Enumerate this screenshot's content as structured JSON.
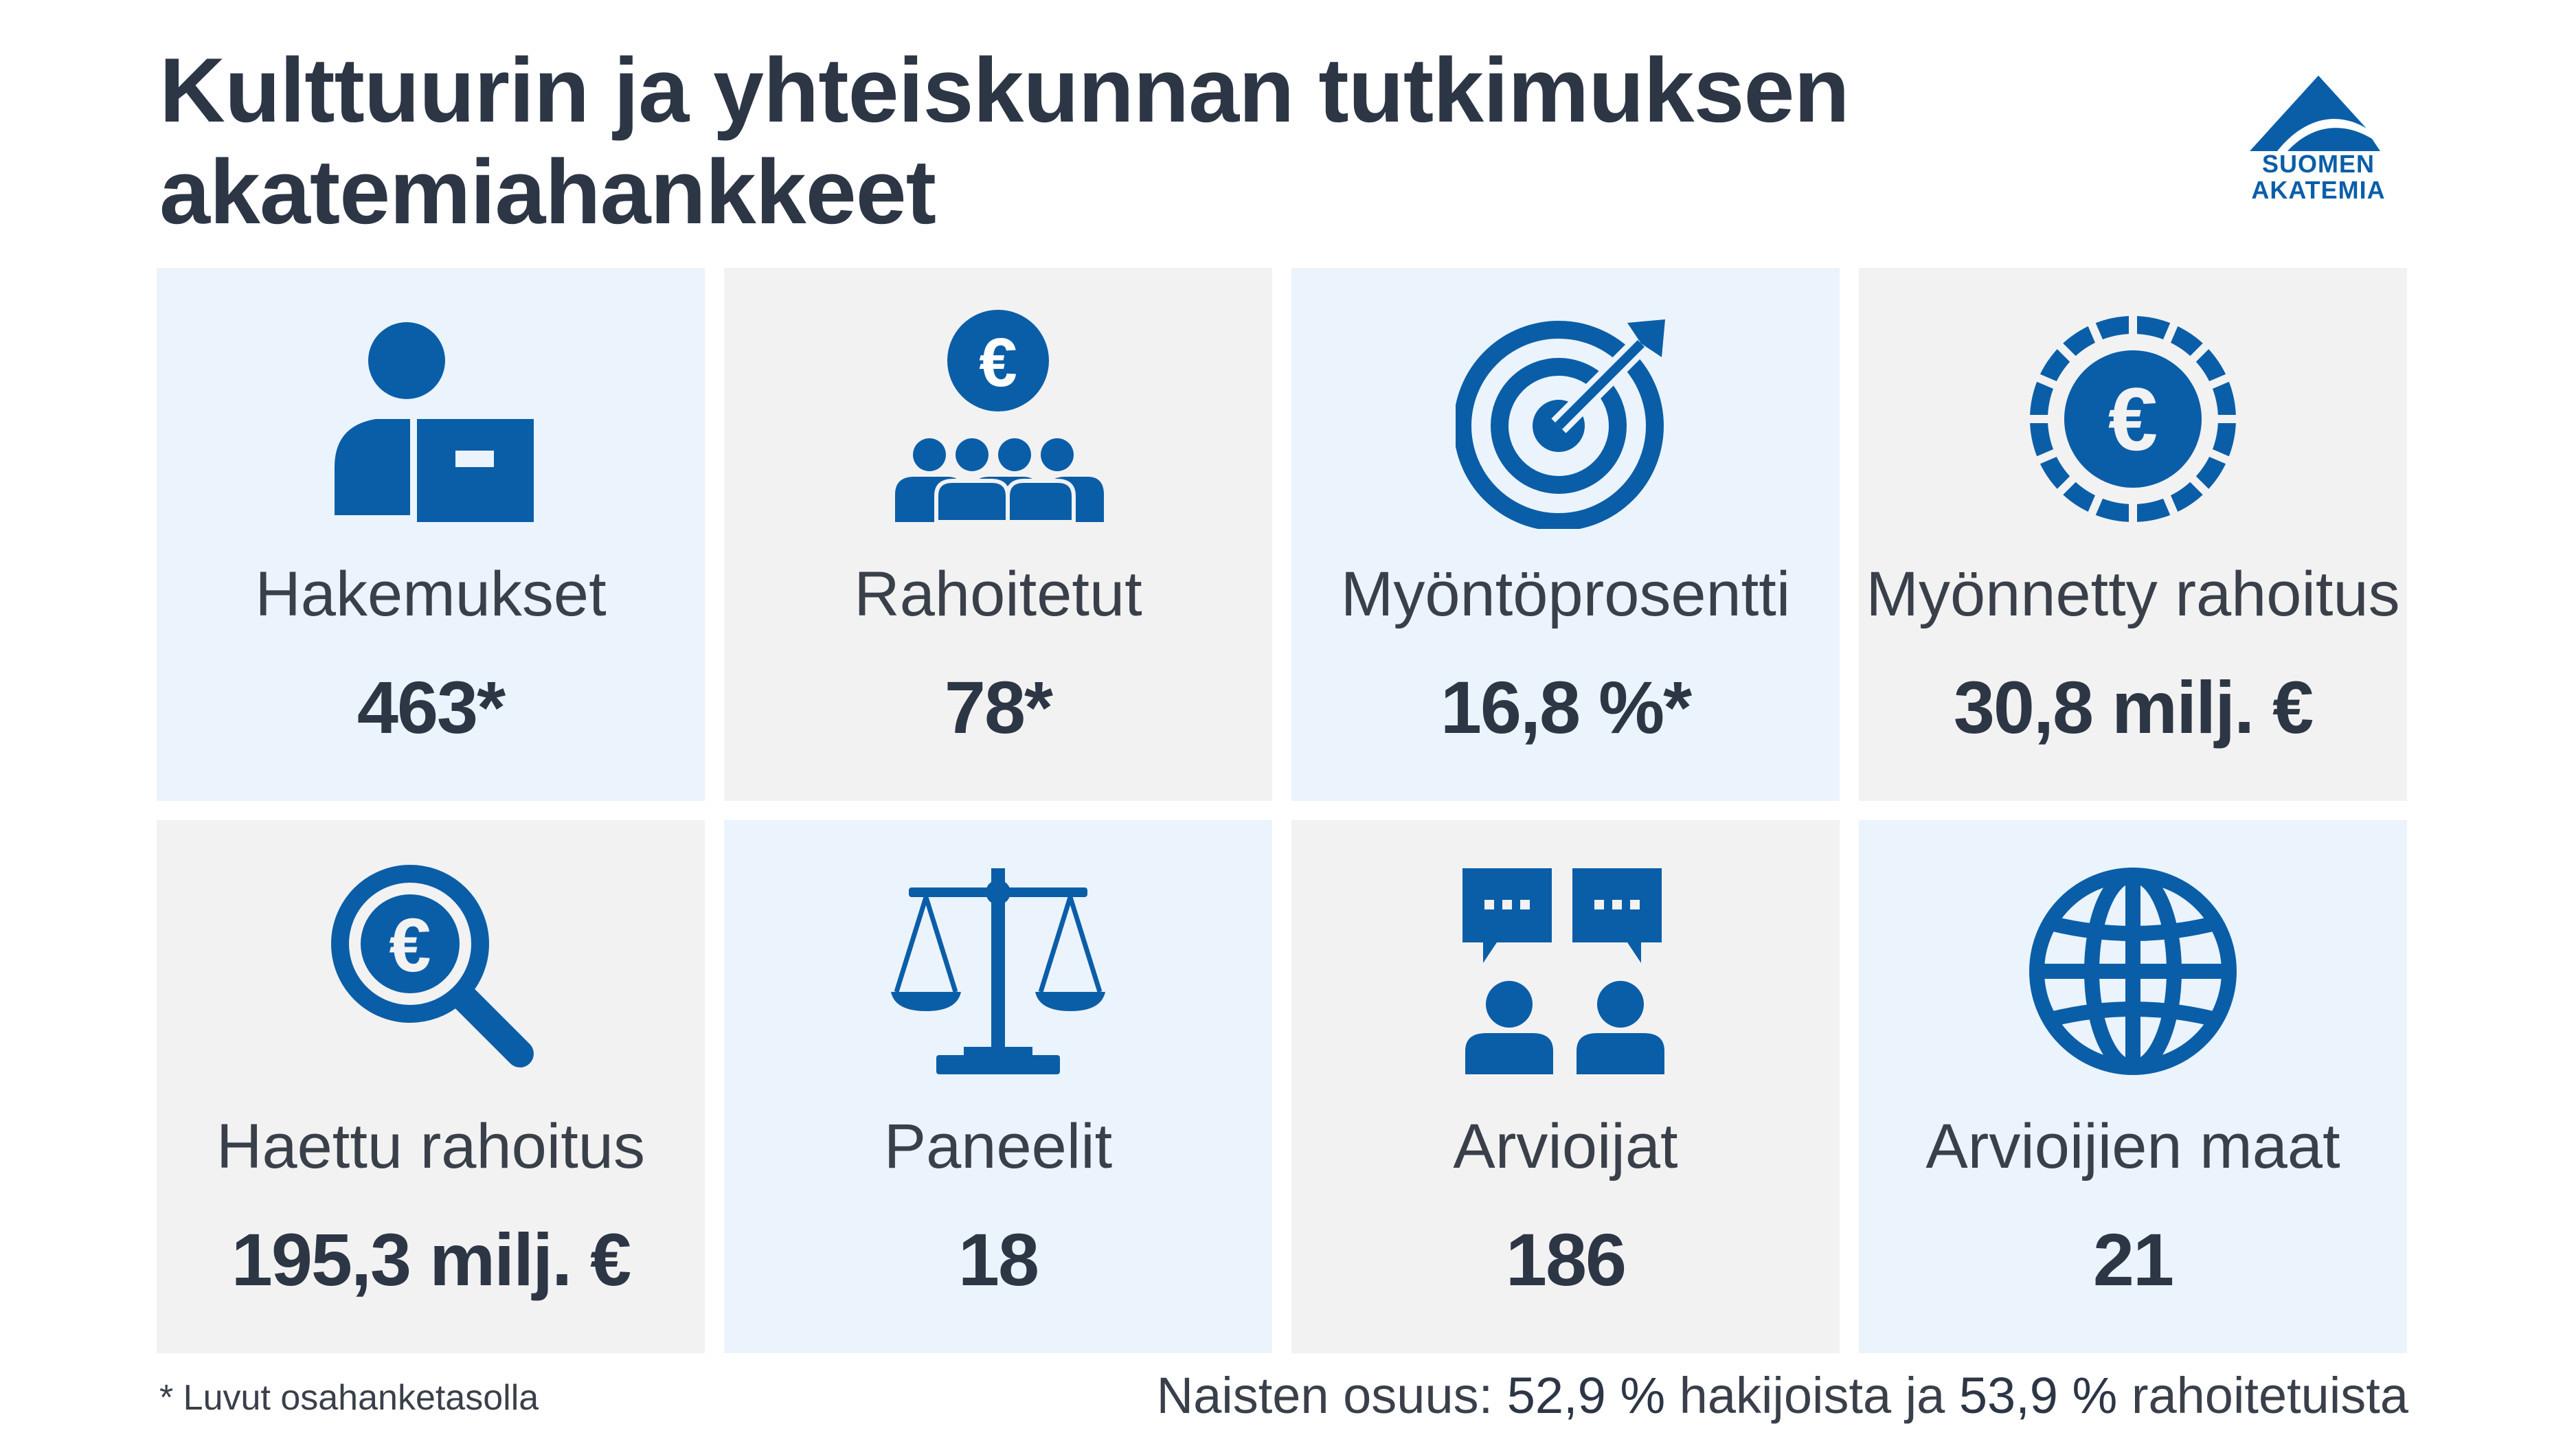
{
  "title": {
    "line1": "Kulttuurin ja yhteiskunnan tutkimuksen",
    "line2": "akatemiahankkeet"
  },
  "logo": {
    "line1": "SUOMEN",
    "line2": "AKATEMIA",
    "icon": "triangle-logo-icon"
  },
  "colors": {
    "brand_blue": "#0a5ea8",
    "tile_blue": "#ebf3fc",
    "tile_gray": "#f2f2f2",
    "title_text": "#2d3645"
  },
  "tiles": [
    {
      "label": "Hakemukset",
      "value": "463*",
      "icon": "applicant-document-icon"
    },
    {
      "label": "Rahoitetut",
      "value": "78*",
      "icon": "euro-people-icon"
    },
    {
      "label": "Myöntöprosentti",
      "value": "16,8 %*",
      "icon": "target-arrow-icon"
    },
    {
      "label": "Myönnetty rahoitus",
      "value": "30,8 milj. €",
      "icon": "euro-coin-icon"
    },
    {
      "label": "Haettu rahoitus",
      "value": "195,3 milj. €",
      "icon": "euro-magnifier-icon"
    },
    {
      "label": "Paneelit",
      "value": "18",
      "icon": "scales-icon"
    },
    {
      "label": "Arvioijat",
      "value": "186",
      "icon": "reviewers-speech-icon"
    },
    {
      "label": "Arvioijien maat",
      "value": "21",
      "icon": "globe-icon"
    }
  ],
  "footnote": "* Luvut osahanketasolla",
  "women_share": {
    "prefix": "Naisten osuus: ",
    "applicants_pct": "52,9 %",
    "middle": " hakijoista ja ",
    "funded_pct": "53,9 %",
    "suffix": " rahoitetuista"
  }
}
